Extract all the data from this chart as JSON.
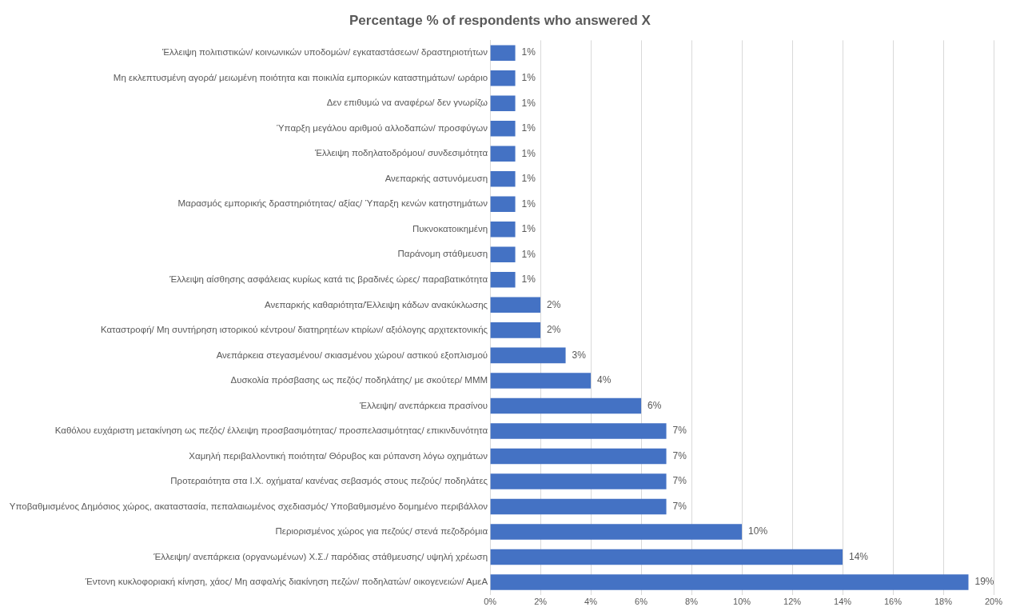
{
  "chart_data": {
    "type": "bar",
    "orientation": "horizontal",
    "title": "Percentage % of respondents who answered X",
    "categories": [
      "Έλλειψη πολιτιστικών/ κοινωνικών υποδομών/ εγκαταστάσεων/ δραστηριοτήτων",
      "Μη εκλεπτυσμένη αγορά/ μειωμένη ποιότητα και ποικιλία εμπορικών καταστημάτων/ ωράριο",
      "Δεν επιθυμώ να αναφέρω/ δεν γνωρίζω",
      "Ύπαρξη μεγάλου αριθμού αλλοδαπών/ προσφύγων",
      "Έλλειψη ποδηλατοδρόμου/ συνδεσιμότητα",
      "Ανεπαρκής αστυνόμευση",
      "Μαρασμός εμπορικής δραστηριότητας/ αξίας/ Ύπαρξη κενών κατηστημάτων",
      "Πυκνοκατοικημένη",
      "Παράνομη στάθμευση",
      "Έλλειψη αίσθησης ασφάλειας κυρίως κατά τις βραδινές ώρες/ παραβατικότητα",
      "Ανεπαρκής καθαριότητα/Έλλειψη κάδων ανακύκλωσης",
      "Καταστροφή/ Μη συντήρηση ιστορικού κέντρου/ διατηρητέων κτιρίων/ αξιόλογης αρχιτεκτονικής",
      "Ανεπάρκεια στεγασμένου/ σκιασμένου χώρου/ αστικού εξοπλισμού",
      "Δυσκολία πρόσβασης ως πεζός/ ποδηλάτης/ με σκούτερ/ ΜΜΜ",
      "Έλλειψη/ ανεπάρκεια πρασίνου",
      "Καθόλου ευχάριστη μετακίνηση ως πεζός/ έλλειψη προσβασιμότητας/ προσπελασιμότητας/ επικινδυνότητα",
      "Χαμηλή περιβαλλοντική ποιότητα/ Θόρυβος και ρύπανση λόγω οχημάτων",
      "Προτεραιότητα στα Ι.Χ. οχήματα/ κανένας σεβασμός στους πεζούς/ ποδηλάτες",
      "Υποβαθμισμένος Δημόσιος χώρος, ακαταστασία, πεπαλαιωμένος σχεδιασμός/ Υποβαθμισμένο δομημένο περιβάλλον",
      "Περιορισμένος χώρος για πεζούς/ στενά πεζοδρόμια",
      "Έλλειψη/ ανεπάρκεια (οργανωμένων) Χ.Σ./ παρόδιας στάθμευσης/ υψηλή χρέωση",
      "Έντονη κυκλοφοριακή κίνηση, χάος/ Μη ασφαλής διακίνηση πεζών/ ποδηλατών/ οικογενειών/ ΑμεΑ"
    ],
    "values": [
      1,
      1,
      1,
      1,
      1,
      1,
      1,
      1,
      1,
      1,
      2,
      2,
      3,
      4,
      6,
      7,
      7,
      7,
      7,
      10,
      14,
      19
    ],
    "value_labels": [
      "1%",
      "1%",
      "1%",
      "1%",
      "1%",
      "1%",
      "1%",
      "1%",
      "1%",
      "1%",
      "2%",
      "2%",
      "3%",
      "4%",
      "6%",
      "7%",
      "7%",
      "7%",
      "7%",
      "10%",
      "14%",
      "19%"
    ],
    "color": "#4472c4",
    "xlim": [
      0,
      20
    ],
    "xticks": [
      {
        "value": 0,
        "label": "0%"
      },
      {
        "value": 2,
        "label": "2%"
      },
      {
        "value": 4,
        "label": "4%"
      },
      {
        "value": 6,
        "label": "6%"
      },
      {
        "value": 8,
        "label": "8%"
      },
      {
        "value": 10,
        "label": "10%"
      },
      {
        "value": 12,
        "label": "12%"
      },
      {
        "value": 14,
        "label": "14%"
      },
      {
        "value": 16,
        "label": "16%"
      },
      {
        "value": 18,
        "label": "18%"
      },
      {
        "value": 20,
        "label": "20%"
      }
    ],
    "grid": "x",
    "legend": false
  }
}
